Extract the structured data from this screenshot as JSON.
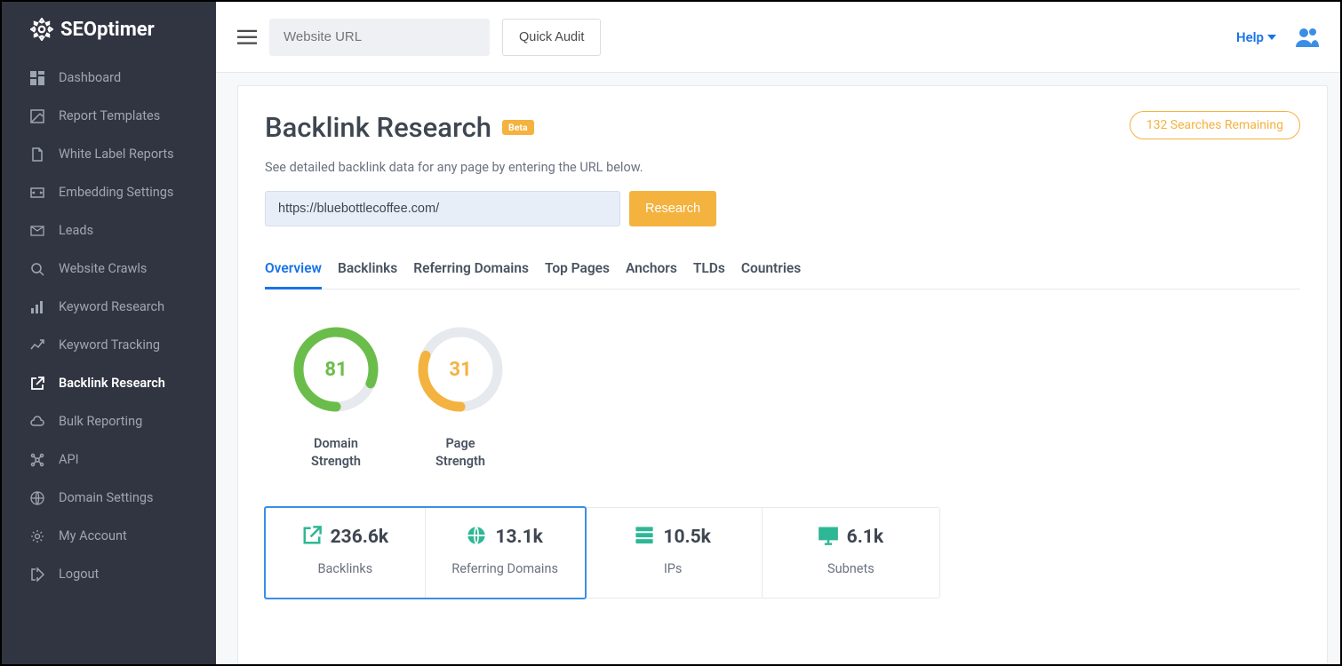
{
  "brand": {
    "name": "SEOptimer"
  },
  "sidebar": {
    "items": [
      {
        "label": "Dashboard",
        "icon": "dashboard-icon"
      },
      {
        "label": "Report Templates",
        "icon": "template-icon"
      },
      {
        "label": "White Label Reports",
        "icon": "document-icon"
      },
      {
        "label": "Embedding Settings",
        "icon": "embed-icon"
      },
      {
        "label": "Leads",
        "icon": "mail-icon"
      },
      {
        "label": "Website Crawls",
        "icon": "search-icon"
      },
      {
        "label": "Keyword Research",
        "icon": "chart-icon"
      },
      {
        "label": "Keyword Tracking",
        "icon": "tracking-icon"
      },
      {
        "label": "Backlink Research",
        "icon": "external-link-icon",
        "active": true
      },
      {
        "label": "Bulk Reporting",
        "icon": "cloud-icon"
      },
      {
        "label": "API",
        "icon": "api-icon"
      },
      {
        "label": "Domain Settings",
        "icon": "globe-icon"
      },
      {
        "label": "My Account",
        "icon": "gear-icon"
      },
      {
        "label": "Logout",
        "icon": "logout-icon"
      }
    ]
  },
  "topbar": {
    "url_placeholder": "Website URL",
    "quick_audit_label": "Quick Audit",
    "help_label": "Help"
  },
  "page": {
    "title": "Backlink Research",
    "beta_label": "Beta",
    "searches_remaining": "132 Searches Remaining",
    "subtitle": "See detailed backlink data for any page by entering the URL below.",
    "search_value": "https://bluebottlecoffee.com/",
    "research_label": "Research"
  },
  "tabs": {
    "items": [
      {
        "label": "Overview",
        "active": true
      },
      {
        "label": "Backlinks"
      },
      {
        "label": "Referring Domains"
      },
      {
        "label": "Top Pages"
      },
      {
        "label": "Anchors"
      },
      {
        "label": "TLDs"
      },
      {
        "label": "Countries"
      }
    ]
  },
  "donuts": [
    {
      "value": "81",
      "percent": 81,
      "color": "#6bbd4b",
      "label_line1": "Domain",
      "label_line2": "Strength"
    },
    {
      "value": "31",
      "percent": 31,
      "color": "#f4b23e",
      "label_line1": "Page",
      "label_line2": "Strength"
    }
  ],
  "stats": [
    {
      "value": "236.6k",
      "label": "Backlinks",
      "icon": "external-link-icon",
      "icon_color": "#2eb795",
      "highlight": true
    },
    {
      "value": "13.1k",
      "label": "Referring Domains",
      "icon": "globe-solid-icon",
      "icon_color": "#2eb795",
      "highlight": true
    },
    {
      "value": "10.5k",
      "label": "IPs",
      "icon": "server-icon",
      "icon_color": "#2eb795"
    },
    {
      "value": "6.1k",
      "label": "Subnets",
      "icon": "monitor-icon",
      "icon_color": "#2eb795"
    }
  ],
  "colors": {
    "sidebar_bg": "#313541",
    "sidebar_text": "#9ea6b1",
    "accent_blue": "#1a73e8",
    "accent_orange": "#f4b23e",
    "accent_green": "#6bbd4b",
    "stat_icon": "#2eb795",
    "track": "#e6e9ed",
    "text_dark": "#3e4651",
    "text_muted": "#6b7280"
  }
}
